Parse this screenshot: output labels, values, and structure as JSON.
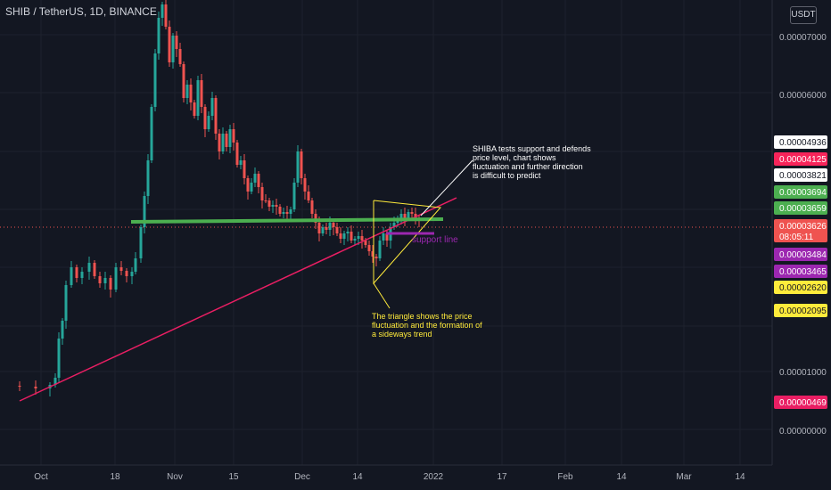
{
  "header": {
    "pair_title": "SHIB / TetherUS, 1D, BINANCE",
    "currency_button": "USDT"
  },
  "chart_data": {
    "type": "candlestick",
    "title": "SHIB / TetherUS, 1D, BINANCE",
    "y_ticks": [
      "0.00007000",
      "0.00006000",
      "0.00001000",
      "0.00000000"
    ],
    "x_ticks": [
      "Oct",
      "18",
      "Nov",
      "15",
      "Dec",
      "14",
      "2022",
      "17",
      "Feb",
      "14",
      "Mar",
      "14"
    ],
    "price_tags": [
      {
        "label": "0.00004936",
        "bg": "#ffffff",
        "fg": "#131722"
      },
      {
        "label": "0.00004125",
        "bg": "#f7245a",
        "fg": "#ffffff"
      },
      {
        "label": "0.00003821",
        "bg": "#ffffff",
        "fg": "#131722"
      },
      {
        "label": "0.00003694",
        "bg": "#4caf50",
        "fg": "#ffffff"
      },
      {
        "label": "0.00003659",
        "bg": "#4caf50",
        "fg": "#ffffff"
      },
      {
        "label": "0.00003626",
        "bg": "#ef5350",
        "fg": "#ffffff",
        "sub": "08:05:11"
      },
      {
        "label": "0.00003484",
        "bg": "#9c27b0",
        "fg": "#ffffff"
      },
      {
        "label": "0.00003465",
        "bg": "#9c27b0",
        "fg": "#ffffff"
      },
      {
        "label": "0.00002620",
        "bg": "#ffeb3b",
        "fg": "#131722"
      },
      {
        "label": "0.00002095",
        "bg": "#ffeb3b",
        "fg": "#131722"
      },
      {
        "label": "0.00000469",
        "bg": "#e91e63",
        "fg": "#ffffff"
      }
    ],
    "annotations": {
      "top_note": [
        "SHIBA tests support and defends",
        "price level, chart shows",
        "fluctuation and further direction",
        "is difficult to predict"
      ],
      "bottom_note": [
        "The triangle shows the price",
        "fluctuation and the formation of",
        "a sideways trend"
      ],
      "support_label": "support line"
    },
    "colors": {
      "up": "#26a69a",
      "down": "#ef5350",
      "background": "#131722",
      "grid": "#1e222d",
      "support": "#4caf50",
      "trendline": "#e91e63",
      "triangle": "#ffeb3b",
      "purple": "#9c27b0"
    }
  }
}
